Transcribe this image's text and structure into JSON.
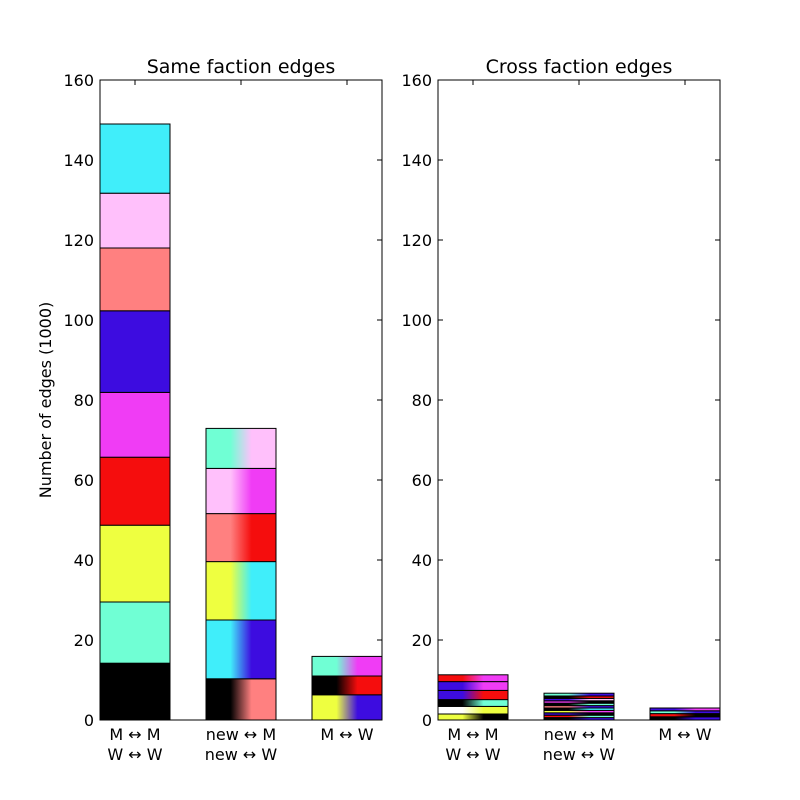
{
  "chart_data": [
    {
      "type": "bar",
      "stacked": true,
      "title": "Same faction edges",
      "ylabel": "Number of edges (1000)",
      "ylim": [
        0,
        160
      ],
      "yticks": [
        0,
        20,
        40,
        60,
        80,
        100,
        120,
        140,
        160
      ],
      "categories": [
        {
          "lines": [
            "M ↔ M",
            "W ↔ W"
          ]
        },
        {
          "lines": [
            "new ↔ M",
            "new ↔ W"
          ]
        },
        {
          "lines": [
            "M ↔ W"
          ]
        }
      ],
      "stacks": [
        [
          {
            "start": 0,
            "end": 14.2,
            "colors": [
              "#000000"
            ]
          },
          {
            "start": 14.2,
            "end": 29.5,
            "colors": [
              "#70ffd4"
            ]
          },
          {
            "start": 29.5,
            "end": 48.7,
            "colors": [
              "#eeff40"
            ]
          },
          {
            "start": 48.7,
            "end": 65.7,
            "colors": [
              "#f50d0d"
            ]
          },
          {
            "start": 65.7,
            "end": 81.9,
            "colors": [
              "#f03cf5"
            ]
          },
          {
            "start": 81.9,
            "end": 102.3,
            "colors": [
              "#3d0ce0"
            ]
          },
          {
            "start": 102.3,
            "end": 118.0,
            "colors": [
              "#ff8080"
            ]
          },
          {
            "start": 118.0,
            "end": 131.7,
            "colors": [
              "#ffc0fb"
            ]
          },
          {
            "start": 131.7,
            "end": 149.0,
            "colors": [
              "#40eefa"
            ]
          }
        ],
        [
          {
            "start": 0,
            "end": 10.3,
            "colors": [
              "#000000",
              "#ff8080"
            ]
          },
          {
            "start": 10.3,
            "end": 25.0,
            "colors": [
              "#40eefa",
              "#3d0ce0"
            ]
          },
          {
            "start": 25.0,
            "end": 39.6,
            "colors": [
              "#eeff40",
              "#40eefa"
            ]
          },
          {
            "start": 39.6,
            "end": 51.6,
            "colors": [
              "#ff8080",
              "#f50d0d"
            ]
          },
          {
            "start": 51.6,
            "end": 62.9,
            "colors": [
              "#ffc0fb",
              "#f03cf5"
            ]
          },
          {
            "start": 62.9,
            "end": 72.9,
            "colors": [
              "#70ffd4",
              "#ffc0fb"
            ]
          }
        ],
        [
          {
            "start": 0,
            "end": 6.3,
            "colors": [
              "#eeff40",
              "#3d0ce0"
            ]
          },
          {
            "start": 6.3,
            "end": 11.0,
            "colors": [
              "#000000",
              "#f50d0d"
            ]
          },
          {
            "start": 11.0,
            "end": 15.9,
            "colors": [
              "#70ffd4",
              "#f03cf5"
            ]
          }
        ]
      ]
    },
    {
      "type": "bar",
      "stacked": true,
      "title": "Cross faction edges",
      "ylabel": "",
      "ylim": [
        0,
        160
      ],
      "yticks": [
        0,
        20,
        40,
        60,
        80,
        100,
        120,
        140,
        160
      ],
      "categories": [
        {
          "lines": [
            "M ↔ M",
            "W ↔ W"
          ]
        },
        {
          "lines": [
            "new ↔ M",
            "new ↔ W"
          ]
        },
        {
          "lines": [
            "M ↔ W"
          ]
        }
      ],
      "stacks": [
        [
          {
            "start": 0,
            "end": 1.5,
            "colors": [
              "#eeff40",
              "#000000"
            ]
          },
          {
            "start": 1.5,
            "end": 3.4,
            "colors": [
              "#ffffff",
              "#eeff40"
            ]
          },
          {
            "start": 3.4,
            "end": 5.1,
            "colors": [
              "#000000",
              "#70ffd4"
            ]
          },
          {
            "start": 5.1,
            "end": 7.4,
            "colors": [
              "#3d0ce0",
              "#f50d0d"
            ]
          },
          {
            "start": 7.4,
            "end": 9.6,
            "colors": [
              "#3d0ce0",
              "#f03cf5"
            ]
          },
          {
            "start": 9.6,
            "end": 11.3,
            "colors": [
              "#f50d0d",
              "#f03cf5"
            ]
          }
        ],
        [
          {
            "start": 0,
            "end": 0.6,
            "colors": [
              "#000000",
              "#3d0ce0"
            ]
          },
          {
            "start": 0.6,
            "end": 1.2,
            "colors": [
              "#f50d0d",
              "#70ffd4"
            ]
          },
          {
            "start": 1.2,
            "end": 1.8,
            "colors": [
              "#3d0ce0",
              "#000000"
            ]
          },
          {
            "start": 1.8,
            "end": 2.4,
            "colors": [
              "#eeff40",
              "#f03cf5"
            ]
          },
          {
            "start": 2.4,
            "end": 3.0,
            "colors": [
              "#000000",
              "#40eefa"
            ]
          },
          {
            "start": 3.0,
            "end": 3.6,
            "colors": [
              "#ff8080",
              "#3d0ce0"
            ]
          },
          {
            "start": 3.6,
            "end": 4.2,
            "colors": [
              "#000000",
              "#70ffd4"
            ]
          },
          {
            "start": 4.2,
            "end": 4.8,
            "colors": [
              "#f03cf5",
              "#000000"
            ]
          },
          {
            "start": 4.8,
            "end": 5.4,
            "colors": [
              "#3d0ce0",
              "#ffc0fb"
            ]
          },
          {
            "start": 5.4,
            "end": 6.0,
            "colors": [
              "#000000",
              "#f50d0d"
            ]
          },
          {
            "start": 6.0,
            "end": 6.7,
            "colors": [
              "#70ffd4",
              "#3d0ce0"
            ]
          }
        ],
        [
          {
            "start": 0,
            "end": 0.8,
            "colors": [
              "#000000",
              "#3d0ce0"
            ]
          },
          {
            "start": 0.8,
            "end": 1.6,
            "colors": [
              "#f50d0d",
              "#000000"
            ]
          },
          {
            "start": 1.6,
            "end": 2.3,
            "colors": [
              "#70ffd4",
              "#3d0ce0"
            ]
          },
          {
            "start": 2.3,
            "end": 3.0,
            "colors": [
              "#3d0ce0",
              "#f03cf5"
            ]
          }
        ]
      ]
    }
  ]
}
